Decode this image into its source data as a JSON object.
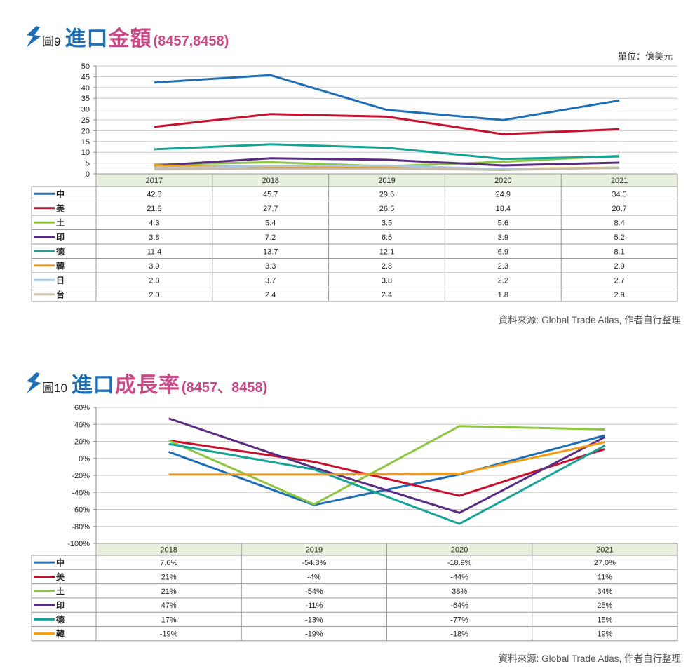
{
  "chart1": {
    "fig_label": "圖9",
    "title_part1": "進口",
    "title_part2": "金額",
    "title_suffix": "(8457,8458)",
    "unit_label": "單位：億美元",
    "source": "資料來源: Global Trade Atlas, 作者自行整理"
  },
  "chart2": {
    "fig_label": "圖10",
    "title_part1": "進口",
    "title_part2": "成長率",
    "title_suffix": "(8457、8458)",
    "source": "資料來源: Global Trade Atlas, 作者自行整理"
  },
  "colors": {
    "中": "#1f6fb5",
    "美": "#c8102e",
    "土": "#8dc63f",
    "印": "#5b2c83",
    "德": "#17a398",
    "韓": "#f39c12",
    "日": "#a7c7e7",
    "台": "#c8bba5",
    "title_blue": "#1f6fb5",
    "title_pink": "#c84a86",
    "table_header_bg": "#e6f0dd"
  },
  "chart_data": [
    {
      "type": "line",
      "ylim": [
        0,
        50
      ],
      "yticks": [
        "50",
        "45",
        "40",
        "35",
        "30",
        "25",
        "20",
        "15",
        "10",
        "5",
        "0"
      ],
      "categories": [
        "2017",
        "2018",
        "2019",
        "2020",
        "2021"
      ],
      "series": [
        {
          "name": "中",
          "values": [
            42.3,
            45.7,
            29.6,
            24.9,
            34.0
          ],
          "labels": [
            "42.3",
            "45.7",
            "29.6",
            "24.9",
            "34.0"
          ]
        },
        {
          "name": "美",
          "values": [
            21.8,
            27.7,
            26.5,
            18.4,
            20.7
          ],
          "labels": [
            "21.8",
            "27.7",
            "26.5",
            "18.4",
            "20.7"
          ]
        },
        {
          "name": "土",
          "values": [
            4.3,
            5.4,
            3.5,
            5.6,
            8.4
          ],
          "labels": [
            "4.3",
            "5.4",
            "3.5",
            "5.6",
            "8.4"
          ]
        },
        {
          "name": "印",
          "values": [
            3.8,
            7.2,
            6.5,
            3.9,
            5.2
          ],
          "labels": [
            "3.8",
            "7.2",
            "6.5",
            "3.9",
            "5.2"
          ]
        },
        {
          "name": "德",
          "values": [
            11.4,
            13.7,
            12.1,
            6.9,
            8.1
          ],
          "labels": [
            "11.4",
            "13.7",
            "12.1",
            "6.9",
            "8.1"
          ]
        },
        {
          "name": "韓",
          "values": [
            3.9,
            3.3,
            2.8,
            2.3,
            2.9
          ],
          "labels": [
            "3.9",
            "3.3",
            "2.8",
            "2.3",
            "2.9"
          ]
        },
        {
          "name": "日",
          "values": [
            2.8,
            3.7,
            3.8,
            2.2,
            2.7
          ],
          "labels": [
            "2.8",
            "3.7",
            "3.8",
            "2.2",
            "2.7"
          ]
        },
        {
          "name": "台",
          "values": [
            2.0,
            2.4,
            2.4,
            1.8,
            2.9
          ],
          "labels": [
            "2.0",
            "2.4",
            "2.4",
            "1.8",
            "2.9"
          ]
        }
      ]
    },
    {
      "type": "line",
      "ylim": [
        -100,
        60
      ],
      "yticks": [
        "60%",
        "40%",
        "20%",
        "0%",
        "-20%",
        "-40%",
        "-60%",
        "-80%",
        "-100%"
      ],
      "categories": [
        "2018",
        "2019",
        "2020",
        "2021"
      ],
      "series": [
        {
          "name": "中",
          "values": [
            7.6,
            -54.8,
            -18.9,
            27.0
          ],
          "labels": [
            "7.6%",
            "-54.8%",
            "-18.9%",
            "27.0%"
          ]
        },
        {
          "name": "美",
          "values": [
            21,
            -4,
            -44,
            11
          ],
          "labels": [
            "21%",
            "-4%",
            "-44%",
            "11%"
          ]
        },
        {
          "name": "土",
          "values": [
            21,
            -54,
            38,
            34
          ],
          "labels": [
            "21%",
            "-54%",
            "38%",
            "34%"
          ]
        },
        {
          "name": "印",
          "values": [
            47,
            -11,
            -64,
            25
          ],
          "labels": [
            "47%",
            "-11%",
            "-64%",
            "25%"
          ]
        },
        {
          "name": "德",
          "values": [
            17,
            -13,
            -77,
            15
          ],
          "labels": [
            "17%",
            "-13%",
            "-77%",
            "15%"
          ]
        },
        {
          "name": "韓",
          "values": [
            -19,
            -19,
            -18,
            19
          ],
          "labels": [
            "-19%",
            "-19%",
            "-18%",
            "19%"
          ]
        }
      ]
    }
  ]
}
